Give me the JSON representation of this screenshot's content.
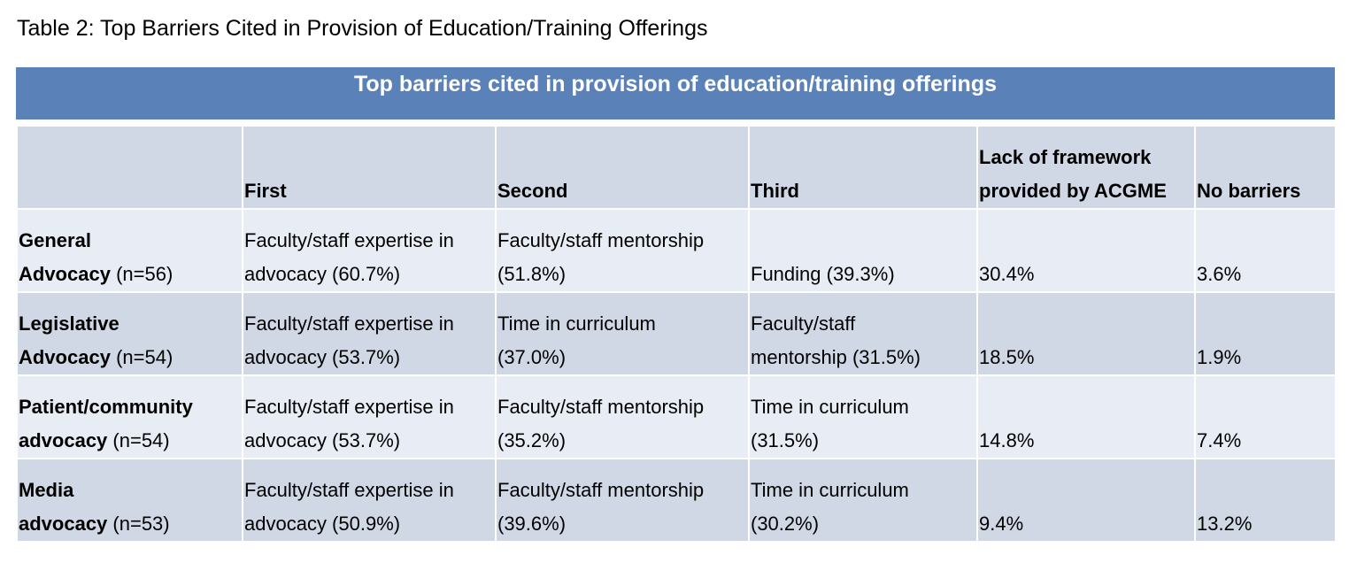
{
  "caption": "Table 2: Top Barriers Cited in Provision of Education/Training Offerings",
  "banner_title": "Top barriers cited in provision of education/training offerings",
  "headers": {
    "blank": "",
    "first": "First",
    "second": "Second",
    "third": "Third",
    "acgme_line1": "Lack of framework",
    "acgme_line2": "provided by ACGME",
    "no_barriers": "No barriers"
  },
  "rows": [
    {
      "label_line1": "General",
      "label_bold2": "Advocacy",
      "label_n": " (n=56)",
      "first_line1": "Faculty/staff expertise in",
      "first_line2": "advocacy (60.7%)",
      "second_line1": "Faculty/staff mentorship",
      "second_line2": "(51.8%)",
      "third_line1": "",
      "third_line2": "Funding (39.3%)",
      "acgme": "30.4%",
      "no_barriers": "3.6%"
    },
    {
      "label_line1": "Legislative",
      "label_bold2": "Advocacy",
      "label_n": " (n=54)",
      "first_line1": "Faculty/staff expertise in",
      "first_line2": "advocacy (53.7%)",
      "second_line1": "Time in curriculum",
      "second_line2": "(37.0%)",
      "third_line1": "Faculty/staff",
      "third_line2": "mentorship (31.5%)",
      "acgme": "18.5%",
      "no_barriers": "1.9%"
    },
    {
      "label_line1": "Patient/community",
      "label_bold2": "advocacy",
      "label_n": " (n=54)",
      "first_line1": "Faculty/staff expertise in",
      "first_line2": "advocacy (53.7%)",
      "second_line1": "Faculty/staff mentorship",
      "second_line2": "(35.2%)",
      "third_line1": "Time in curriculum",
      "third_line2": "(31.5%)",
      "acgme": "14.8%",
      "no_barriers": "7.4%"
    },
    {
      "label_line1": "Media",
      "label_bold2": "advocacy",
      "label_n": " (n=53)",
      "first_line1": "Faculty/staff expertise in",
      "first_line2": "advocacy (50.9%)",
      "second_line1": "Faculty/staff mentorship",
      "second_line2": "(39.6%)",
      "third_line1": "Time in curriculum",
      "third_line2": "(30.2%)",
      "acgme": "9.4%",
      "no_barriers": "13.2%"
    }
  ],
  "colors": {
    "banner": "#5b82b8",
    "row_dark": "#d0d8e6",
    "row_light": "#e8ecf4"
  }
}
